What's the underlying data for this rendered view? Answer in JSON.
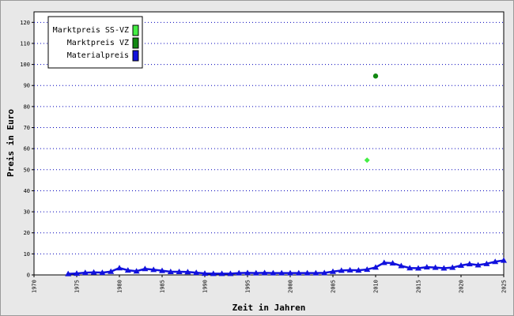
{
  "chart_data": {
    "type": "line",
    "title": "",
    "xlabel": "Zeit in Jahren",
    "ylabel": "Preis in Euro",
    "xlim": [
      1970,
      2025
    ],
    "ylim": [
      0,
      125
    ],
    "x_ticks": [
      "1970",
      "1975",
      "1980",
      "1985",
      "1990",
      "1995",
      "2000",
      "2005",
      "2010",
      "2015",
      "2020",
      "2025"
    ],
    "y_ticks": [
      "0",
      "10",
      "20",
      "30",
      "40",
      "50",
      "60",
      "70",
      "80",
      "90",
      "100",
      "110",
      "120"
    ],
    "grid": "horizontal dotted",
    "legend_position": "top-left",
    "series": [
      {
        "name": "Marktpreis SS-VZ",
        "marker": "diamond",
        "color": "#44ee44",
        "points": [
          {
            "x": 2009,
            "y": 54.5
          }
        ]
      },
      {
        "name": "Marktpreis VZ",
        "marker": "circle",
        "color": "#118811",
        "points": [
          {
            "x": 2010,
            "y": 94.5
          }
        ]
      },
      {
        "name": "Materialpreis",
        "marker": "triangle",
        "color": "#1111dd",
        "points": [
          {
            "x": 1974,
            "y": 0.5
          },
          {
            "x": 1975,
            "y": 0.7
          },
          {
            "x": 1976,
            "y": 1.1
          },
          {
            "x": 1977,
            "y": 1.2
          },
          {
            "x": 1978,
            "y": 1.1
          },
          {
            "x": 1979,
            "y": 1.6
          },
          {
            "x": 1980,
            "y": 3.3
          },
          {
            "x": 1981,
            "y": 2.2
          },
          {
            "x": 1982,
            "y": 1.8
          },
          {
            "x": 1983,
            "y": 2.9
          },
          {
            "x": 1984,
            "y": 2.5
          },
          {
            "x": 1985,
            "y": 2.0
          },
          {
            "x": 1986,
            "y": 1.5
          },
          {
            "x": 1987,
            "y": 1.5
          },
          {
            "x": 1988,
            "y": 1.4
          },
          {
            "x": 1989,
            "y": 1.1
          },
          {
            "x": 1990,
            "y": 0.7
          },
          {
            "x": 1991,
            "y": 0.6
          },
          {
            "x": 1992,
            "y": 0.6
          },
          {
            "x": 1993,
            "y": 0.6
          },
          {
            "x": 1994,
            "y": 0.9
          },
          {
            "x": 1995,
            "y": 1.0
          },
          {
            "x": 1996,
            "y": 0.9
          },
          {
            "x": 1997,
            "y": 1.0
          },
          {
            "x": 1998,
            "y": 0.9
          },
          {
            "x": 1999,
            "y": 0.9
          },
          {
            "x": 2000,
            "y": 0.9
          },
          {
            "x": 2001,
            "y": 0.9
          },
          {
            "x": 2002,
            "y": 0.9
          },
          {
            "x": 2003,
            "y": 0.9
          },
          {
            "x": 2004,
            "y": 1.0
          },
          {
            "x": 2005,
            "y": 1.6
          },
          {
            "x": 2006,
            "y": 2.1
          },
          {
            "x": 2007,
            "y": 2.3
          },
          {
            "x": 2008,
            "y": 2.2
          },
          {
            "x": 2009,
            "y": 2.6
          },
          {
            "x": 2010,
            "y": 3.6
          },
          {
            "x": 2011,
            "y": 5.8
          },
          {
            "x": 2012,
            "y": 5.6
          },
          {
            "x": 2013,
            "y": 4.3
          },
          {
            "x": 2014,
            "y": 3.3
          },
          {
            "x": 2015,
            "y": 3.2
          },
          {
            "x": 2016,
            "y": 3.7
          },
          {
            "x": 2017,
            "y": 3.5
          },
          {
            "x": 2018,
            "y": 3.2
          },
          {
            "x": 2019,
            "y": 3.5
          },
          {
            "x": 2020,
            "y": 4.5
          },
          {
            "x": 2021,
            "y": 5.2
          },
          {
            "x": 2022,
            "y": 4.7
          },
          {
            "x": 2023,
            "y": 5.3
          },
          {
            "x": 2024,
            "y": 6.3
          },
          {
            "x": 2025,
            "y": 6.9
          }
        ]
      }
    ]
  }
}
